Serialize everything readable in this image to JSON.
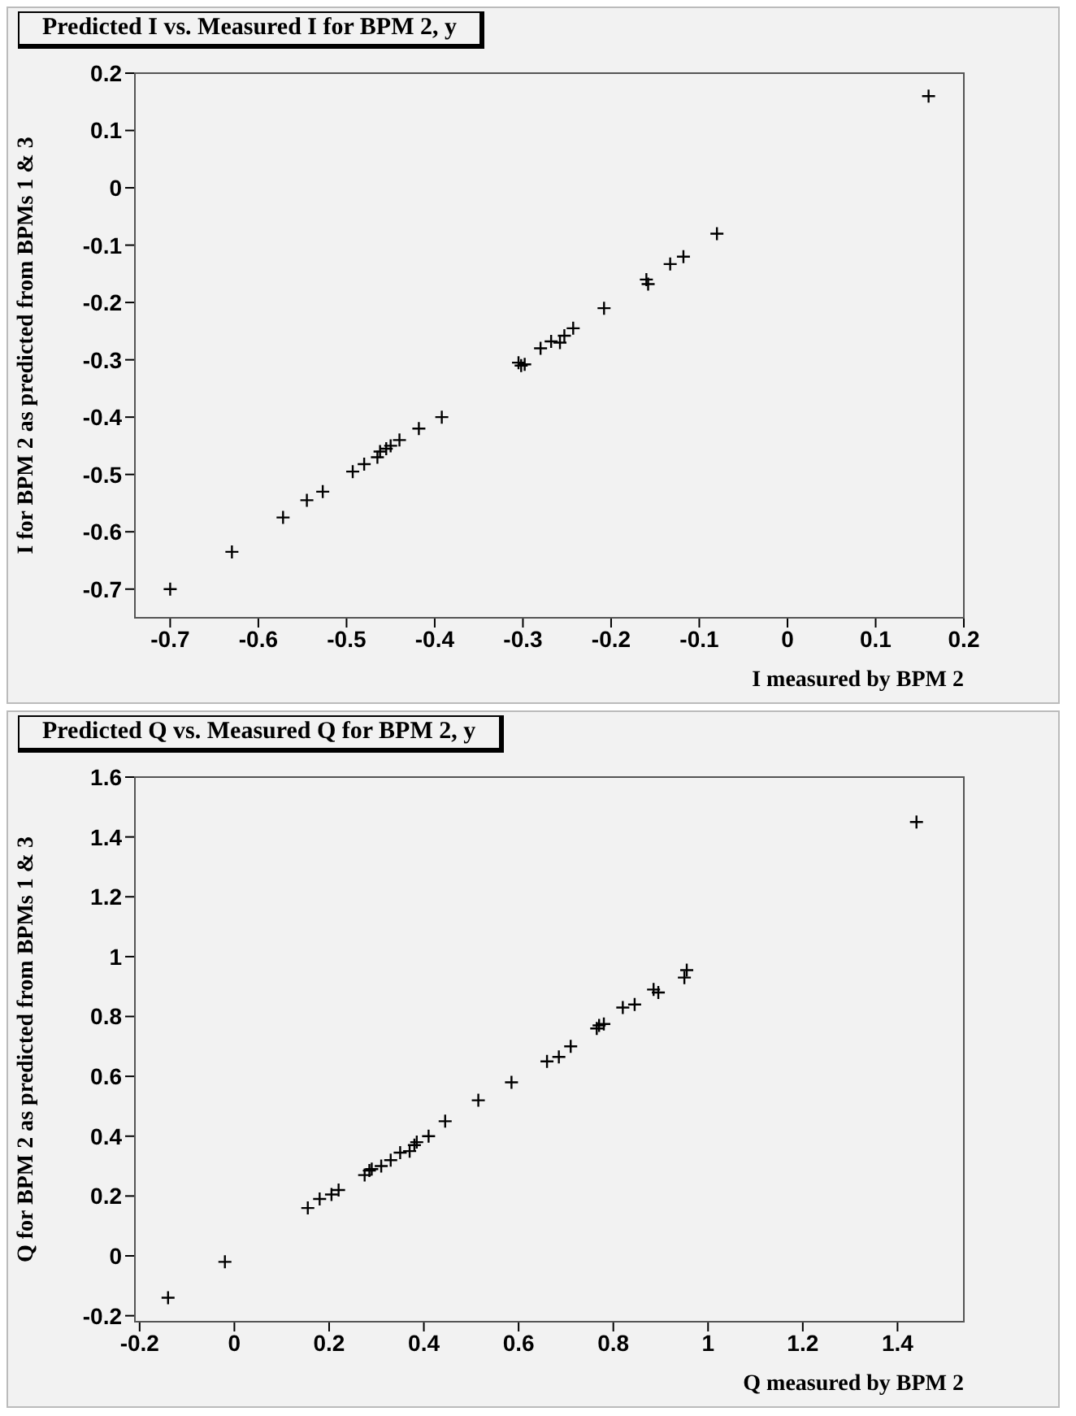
{
  "chart_data": [
    {
      "type": "scatter",
      "title": "Predicted I vs. Measured I for BPM 2, y",
      "xlabel": "I measured by BPM 2",
      "ylabel": "I for BPM 2 as predicted from BPMs 1 & 3",
      "marker": "cross",
      "grid": false,
      "legend": false,
      "xlim": [
        -0.74,
        0.2
      ],
      "xticks": [
        -0.7,
        -0.6,
        -0.5,
        -0.4,
        -0.3,
        -0.2,
        -0.1,
        0,
        0.1,
        0.2
      ],
      "ylim": [
        -0.75,
        0.2
      ],
      "yticks": [
        -0.7,
        -0.6,
        -0.5,
        -0.4,
        -0.3,
        -0.2,
        -0.1,
        0,
        0.1,
        0.2
      ],
      "series": [
        {
          "color": "#000000",
          "x": [
            -0.7,
            -0.63,
            -0.572,
            -0.545,
            -0.527,
            -0.493,
            -0.48,
            -0.465,
            -0.462,
            -0.455,
            -0.45,
            -0.44,
            -0.418,
            -0.392,
            -0.305,
            -0.302,
            -0.298,
            -0.28,
            -0.268,
            -0.258,
            -0.253,
            -0.243,
            -0.208,
            -0.16,
            -0.158,
            -0.133,
            -0.118,
            -0.08,
            0.16
          ],
          "values": [
            -0.7,
            -0.635,
            -0.575,
            -0.545,
            -0.53,
            -0.495,
            -0.482,
            -0.47,
            -0.46,
            -0.455,
            -0.45,
            -0.44,
            -0.42,
            -0.4,
            -0.305,
            -0.31,
            -0.308,
            -0.28,
            -0.268,
            -0.27,
            -0.258,
            -0.245,
            -0.21,
            -0.16,
            -0.168,
            -0.133,
            -0.12,
            -0.08,
            0.16
          ]
        }
      ]
    },
    {
      "type": "scatter",
      "title": "Predicted Q vs. Measured Q for BPM 2, y",
      "xlabel": "Q measured by BPM 2",
      "ylabel": "Q for BPM 2 as predicted from BPMs 1 & 3",
      "marker": "cross",
      "grid": false,
      "legend": false,
      "xlim": [
        -0.21,
        1.54
      ],
      "xticks": [
        -0.2,
        0,
        0.2,
        0.4,
        0.6,
        0.8,
        1,
        1.2,
        1.4
      ],
      "ylim": [
        -0.22,
        1.6
      ],
      "yticks": [
        -0.2,
        0,
        0.2,
        0.4,
        0.6,
        0.8,
        1,
        1.2,
        1.4,
        1.6
      ],
      "series": [
        {
          "color": "#000000",
          "x": [
            -0.14,
            -0.02,
            0.155,
            0.18,
            0.205,
            0.22,
            0.275,
            0.285,
            0.29,
            0.31,
            0.33,
            0.35,
            0.37,
            0.38,
            0.385,
            0.41,
            0.445,
            0.515,
            0.585,
            0.66,
            0.685,
            0.71,
            0.765,
            0.77,
            0.78,
            0.82,
            0.845,
            0.885,
            0.895,
            0.95,
            0.955,
            1.44
          ],
          "values": [
            -0.14,
            -0.02,
            0.16,
            0.19,
            0.205,
            0.22,
            0.27,
            0.285,
            0.29,
            0.3,
            0.32,
            0.345,
            0.35,
            0.37,
            0.38,
            0.4,
            0.45,
            0.52,
            0.58,
            0.65,
            0.665,
            0.7,
            0.76,
            0.77,
            0.775,
            0.83,
            0.84,
            0.89,
            0.88,
            0.93,
            0.955,
            1.45
          ]
        }
      ]
    }
  ]
}
